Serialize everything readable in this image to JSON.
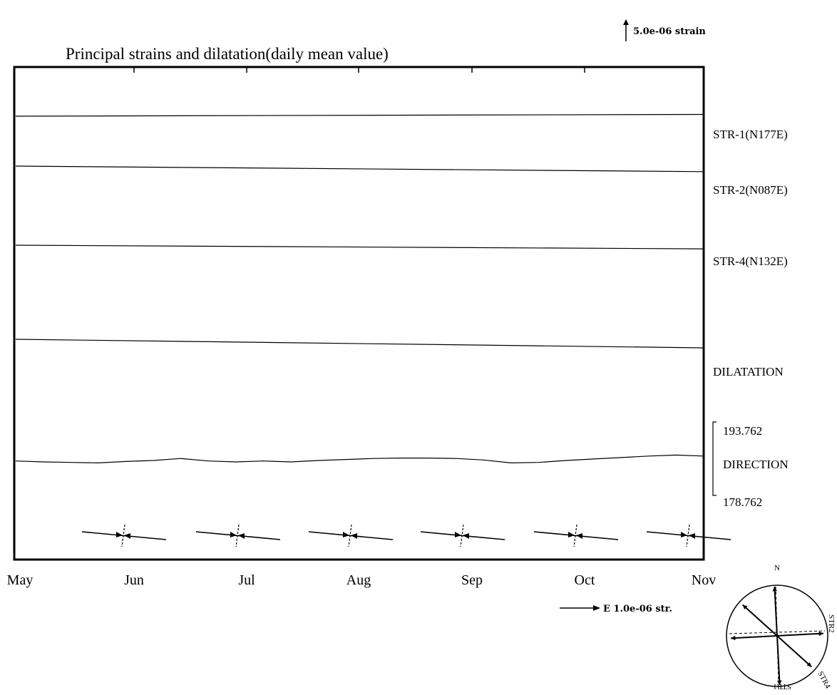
{
  "chart_data": {
    "type": "line",
    "title": "Principal strains and dilatation(daily mean value)",
    "x_months": [
      "May",
      "Jun",
      "Jul",
      "Aug",
      "Sep",
      "Oct",
      "Nov"
    ],
    "scale_bar_strain": "5.0e-06 strain",
    "scale_bar_vector": "E 1.0e-06 str.",
    "series": [
      {
        "name": "STR-1(N177E)",
        "x": [
          "May",
          "Nov"
        ],
        "y": [
          0.0,
          0.42
        ]
      },
      {
        "name": "STR-2(N087E)",
        "x": [
          "May",
          "Nov"
        ],
        "y": [
          0.0,
          -1.3
        ]
      },
      {
        "name": "STR-4(N132E)",
        "x": [
          "May",
          "Nov"
        ],
        "y": [
          0.0,
          -0.85
        ]
      },
      {
        "name": "DILATATION",
        "x": [
          "May",
          "Nov"
        ],
        "y": [
          0.0,
          -2.0
        ]
      }
    ],
    "direction": {
      "label": "DIRECTION",
      "range_max": "193.762",
      "range_min": "178.762",
      "values": [
        185.8,
        185.6,
        185.5,
        185.4,
        185.7,
        185.9,
        186.3,
        185.8,
        185.6,
        185.8,
        185.6,
        185.9,
        186.1,
        186.3,
        186.4,
        186.4,
        186.3,
        186.0,
        185.4,
        185.5,
        185.9,
        186.2,
        186.5,
        186.8,
        187.0,
        186.8
      ]
    },
    "strain_crosses": {
      "count": 6,
      "months": [
        "Jun",
        "Jul",
        "Aug",
        "Sep",
        "Oct",
        "Nov"
      ]
    },
    "rose_diagram": {
      "labels": [
        "N",
        "STR2",
        "STR4",
        "STR1"
      ],
      "axes": [
        {
          "name": "STR1",
          "azimuth_deg": 177
        },
        {
          "name": "STR2",
          "azimuth_deg": 87
        },
        {
          "name": "STR4",
          "azimuth_deg": 132
        }
      ]
    }
  }
}
